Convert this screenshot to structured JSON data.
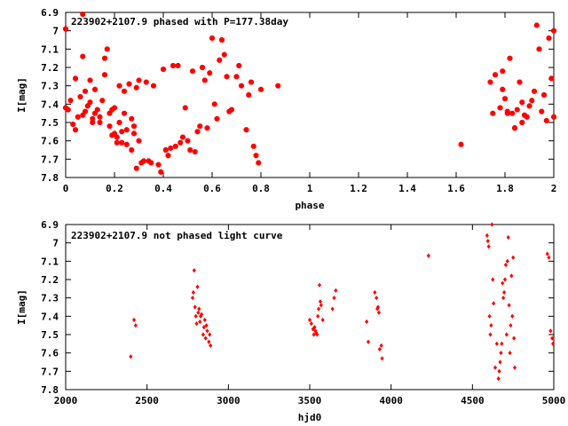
{
  "chart_data": [
    {
      "type": "scatter",
      "title": "223902+2107.9 phased with P=177.38day",
      "xlabel": "phase",
      "ylabel": "I[mag]",
      "xlim": [
        0,
        2
      ],
      "ylim": [
        7.8,
        6.9
      ],
      "y_inverted": true,
      "grid": false,
      "marker": "star",
      "color": "#ff0000",
      "xticks": [
        "0",
        "0.2",
        "0.4",
        "0.6",
        "0.8",
        "1",
        "1.2",
        "1.4",
        "1.6",
        "1.8",
        "2"
      ],
      "yticks": [
        "6.9",
        "7",
        "7.1",
        "7.2",
        "7.3",
        "7.4",
        "7.5",
        "7.6",
        "7.7",
        "7.8"
      ],
      "series": [
        {
          "x": [
            0.0,
            0.0,
            0.01,
            0.02,
            0.03,
            0.04,
            0.04,
            0.05,
            0.06,
            0.07,
            0.07,
            0.08,
            0.08,
            0.09,
            0.1,
            0.1,
            0.11,
            0.11,
            0.12,
            0.12,
            0.13,
            0.14,
            0.14,
            0.15,
            0.16,
            0.16,
            0.17,
            0.18,
            0.18,
            0.19,
            0.19,
            0.2,
            0.2,
            0.21,
            0.21,
            0.22,
            0.22,
            0.23,
            0.23,
            0.24,
            0.24,
            0.25,
            0.25,
            0.26,
            0.27,
            0.27,
            0.28,
            0.28,
            0.29,
            0.29,
            0.3,
            0.3,
            0.31,
            0.32,
            0.33,
            0.34,
            0.35,
            0.36,
            0.38,
            0.39,
            0.4,
            0.41,
            0.42,
            0.43,
            0.44,
            0.45,
            0.46,
            0.47,
            0.48,
            0.49,
            0.5,
            0.51,
            0.52,
            0.53,
            0.54,
            0.55,
            0.56,
            0.57,
            0.58,
            0.59,
            0.6,
            0.61,
            0.62,
            0.63,
            0.64,
            0.65,
            0.66,
            0.67,
            0.68,
            0.7,
            0.71,
            0.72,
            0.74,
            0.75,
            0.76,
            0.77,
            0.78,
            0.79,
            0.8,
            0.87,
            0.07,
            1.62,
            1.74,
            1.75,
            1.76,
            1.78,
            1.79,
            1.8,
            1.81,
            1.82,
            1.83,
            1.84,
            1.85,
            1.86,
            1.87,
            1.88,
            1.89,
            1.9,
            1.91,
            1.92,
            1.93,
            1.94,
            1.95,
            1.96,
            1.97,
            1.98,
            1.99,
            2.0,
            2.0,
            1.79,
            1.81,
            1.84,
            1.87
          ],
          "y": [
            6.99,
            7.42,
            7.43,
            7.38,
            7.51,
            7.26,
            7.54,
            7.47,
            7.36,
            7.14,
            7.46,
            7.33,
            7.44,
            7.41,
            7.39,
            7.27,
            7.48,
            7.5,
            7.45,
            7.32,
            7.43,
            7.47,
            7.5,
            7.38,
            7.15,
            7.24,
            7.1,
            7.45,
            7.52,
            7.43,
            7.57,
            7.56,
            7.42,
            7.61,
            7.58,
            7.5,
            7.3,
            7.61,
            7.55,
            7.45,
            7.33,
            7.62,
            7.54,
            7.29,
            7.48,
            7.65,
            7.52,
            7.56,
            7.75,
            7.31,
            7.6,
            7.27,
            7.72,
            7.71,
            7.28,
            7.71,
            7.72,
            7.3,
            7.73,
            7.77,
            7.21,
            7.65,
            7.68,
            7.64,
            7.19,
            7.63,
            7.19,
            7.61,
            7.58,
            7.42,
            7.6,
            7.65,
            7.22,
            7.66,
            7.55,
            7.52,
            7.2,
            7.27,
            7.53,
            7.23,
            7.04,
            7.4,
            7.48,
            7.16,
            7.05,
            7.13,
            7.25,
            7.44,
            7.43,
            7.25,
            7.19,
            7.3,
            7.54,
            7.35,
            7.28,
            7.63,
            7.68,
            7.72,
            7.32,
            7.3,
            6.91,
            7.62,
            7.28,
            7.45,
            7.24,
            7.42,
            7.32,
            7.37,
            7.44,
            7.15,
            7.45,
            7.53,
            7.43,
            7.28,
            7.39,
            7.46,
            7.47,
            7.41,
            7.38,
            7.33,
            6.97,
            7.1,
            7.44,
            7.35,
            7.49,
            7.04,
            7.26,
            7.47,
            7.0,
            7.22,
            7.45,
            7.53,
            7.5
          ]
        }
      ]
    },
    {
      "type": "scatter",
      "title": "223902+2107.9 not phased light curve",
      "xlabel": "hjd0",
      "ylabel": "I[mag]",
      "xlim": [
        2000,
        5000
      ],
      "ylim": [
        7.8,
        6.9
      ],
      "y_inverted": true,
      "grid": false,
      "marker": "diamond",
      "color": "#ff0000",
      "xticks": [
        "2000",
        "2500",
        "3000",
        "3500",
        "4000",
        "4500",
        "5000"
      ],
      "yticks": [
        "6.9",
        "7",
        "7.1",
        "7.2",
        "7.3",
        "7.4",
        "7.5",
        "7.6",
        "7.7",
        "7.8"
      ],
      "series": [
        {
          "x": [
            2400,
            2420,
            2430,
            2780,
            2785,
            2790,
            2795,
            2800,
            2805,
            2810,
            2815,
            2820,
            2825,
            2830,
            2835,
            2845,
            2850,
            2855,
            2860,
            2865,
            2870,
            2880,
            2885,
            2890,
            3500,
            3510,
            3520,
            3525,
            3530,
            3535,
            3540,
            3545,
            3550,
            3555,
            3560,
            3565,
            3570,
            3580,
            3640,
            3650,
            3660,
            3850,
            3860,
            3900,
            3910,
            3915,
            3920,
            3925,
            3930,
            3940,
            3945,
            4230,
            4590,
            4595,
            4600,
            4605,
            4610,
            4615,
            4620,
            4625,
            4630,
            4640,
            4650,
            4660,
            4665,
            4670,
            4675,
            4680,
            4685,
            4690,
            4695,
            4700,
            4705,
            4710,
            4715,
            4720,
            4725,
            4730,
            4735,
            4740,
            4745,
            4750,
            4755,
            4760,
            4960,
            4970,
            4980,
            4990,
            4995
          ],
          "y": [
            7.62,
            7.42,
            7.45,
            7.3,
            7.27,
            7.15,
            7.35,
            7.4,
            7.44,
            7.24,
            7.38,
            7.36,
            7.43,
            7.4,
            7.39,
            7.5,
            7.46,
            7.42,
            7.52,
            7.45,
            7.48,
            7.54,
            7.5,
            7.56,
            7.42,
            7.44,
            7.47,
            7.5,
            7.46,
            7.48,
            7.49,
            7.5,
            7.4,
            7.36,
            7.23,
            7.32,
            7.34,
            7.42,
            7.36,
            7.3,
            7.26,
            7.43,
            7.54,
            7.27,
            7.3,
            7.36,
            7.35,
            7.38,
            7.58,
            7.56,
            7.63,
            7.07,
            6.96,
            6.99,
            7.02,
            7.4,
            7.5,
            7.45,
            6.9,
            7.2,
            7.33,
            7.68,
            7.55,
            7.74,
            7.7,
            7.65,
            7.6,
            7.55,
            7.22,
            7.3,
            7.27,
            7.2,
            7.12,
            7.5,
            7.1,
            6.97,
            7.34,
            7.6,
            7.45,
            7.18,
            7.4,
            7.08,
            7.52,
            7.68,
            7.06,
            7.08,
            7.48,
            7.52,
            7.55
          ]
        }
      ]
    }
  ]
}
